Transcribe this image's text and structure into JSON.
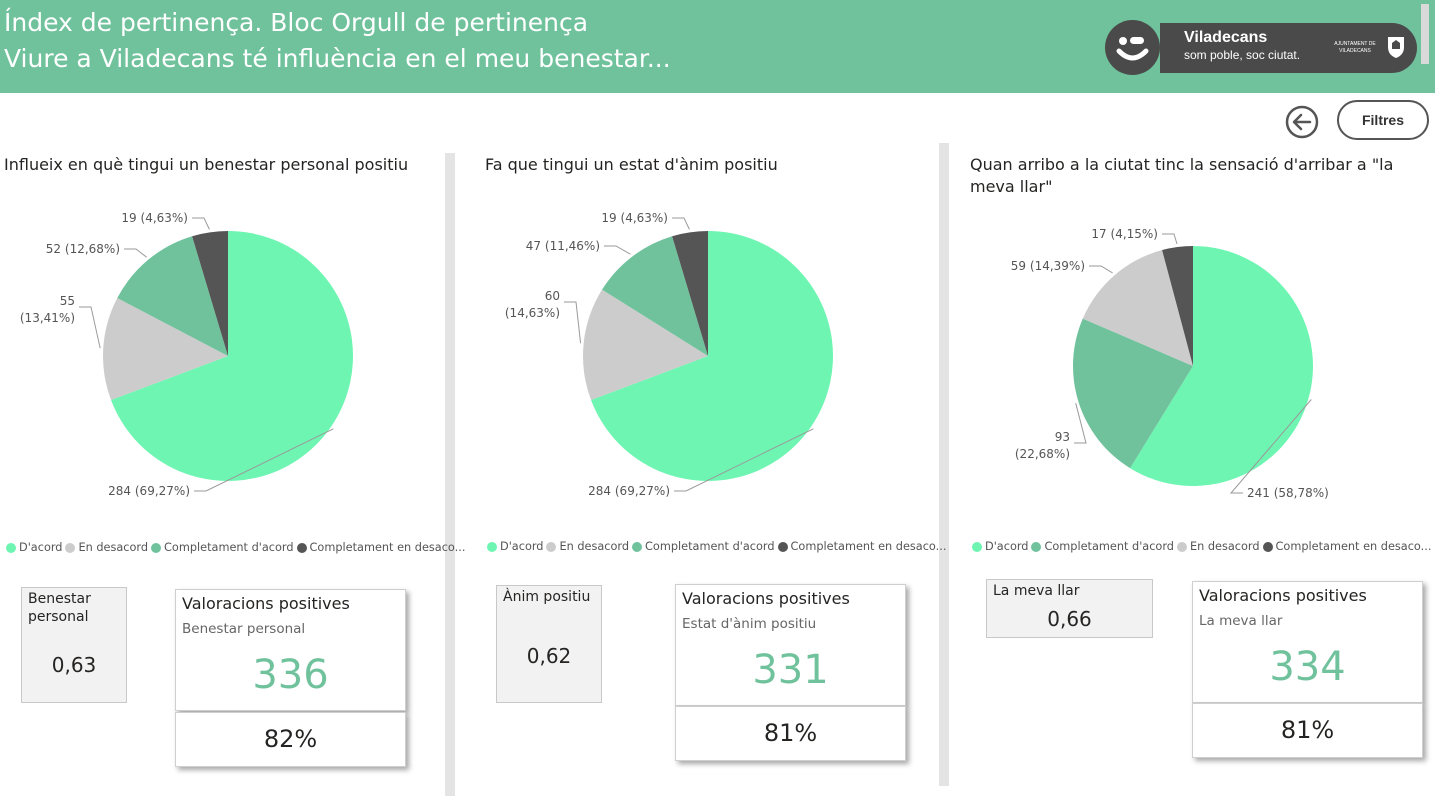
{
  "header": {
    "title_line1": "Índex de pertinença. Bloc Orgull de pertinença",
    "title_line2": "Viure a Viladecans té influència en el meu benestar...",
    "logo_name": "Viladecans",
    "logo_tagline": "som poble, soc ciutat.",
    "logo_ajuntament": "AJUNTAMENT DE VILADECANS"
  },
  "toolbar": {
    "filters_label": "Filtres",
    "back_icon": "back-arrow-icon"
  },
  "colors": {
    "header_bg": "#70c29c",
    "d_acord": "#6ef5b2",
    "completament_d_acord": "#70c29c",
    "en_desacord": "#cccccc",
    "completament_en_desacord": "#555555",
    "kpi_number": "#70c29c"
  },
  "panels": [
    {
      "title": "Influeix en què tingui un benestar personal positiu",
      "legend": [
        {
          "label": "D'acord",
          "color": "#6ef5b2"
        },
        {
          "label": "En desacord",
          "color": "#cccccc"
        },
        {
          "label": "Completament d'acord",
          "color": "#70c29c"
        },
        {
          "label": "Completament en desaco...",
          "color": "#555555"
        }
      ],
      "index_label": "Benestar personal",
      "index_value": "0,63",
      "valoracions_title": "Valoracions positives",
      "valoracions_sub": "Benestar personal",
      "valoracions_num": "336",
      "valoracions_pct": "82%"
    },
    {
      "title": "Fa que tingui un estat d'ànim positiu",
      "legend": [
        {
          "label": "D'acord",
          "color": "#6ef5b2"
        },
        {
          "label": "En desacord",
          "color": "#cccccc"
        },
        {
          "label": "Completament d'acord",
          "color": "#70c29c"
        },
        {
          "label": "Completament en desaco...",
          "color": "#555555"
        }
      ],
      "index_label": "Ànim positiu",
      "index_value": "0,62",
      "valoracions_title": "Valoracions positives",
      "valoracions_sub": "Estat d'ànim positiu",
      "valoracions_num": "331",
      "valoracions_pct": "81%"
    },
    {
      "title": "Quan arribo a la ciutat tinc la sensació d'arribar a \"la meva llar\"",
      "legend": [
        {
          "label": "D'acord",
          "color": "#6ef5b2"
        },
        {
          "label": "Completament d'acord",
          "color": "#70c29c"
        },
        {
          "label": "En desacord",
          "color": "#cccccc"
        },
        {
          "label": "Completament en desaco...",
          "color": "#555555"
        }
      ],
      "index_label": "La meva llar",
      "index_value": "0,66",
      "valoracions_title": "Valoracions positives",
      "valoracions_sub": "La meva llar",
      "valoracions_num": "334",
      "valoracions_pct": "81%"
    }
  ],
  "chart_data": [
    {
      "type": "pie",
      "title": "Influeix en què tingui un benestar personal positiu",
      "slices": [
        {
          "name": "D'acord",
          "value": 284,
          "label": "284 (69,27%)",
          "color": "#6ef5b2"
        },
        {
          "name": "En desacord",
          "value": 55,
          "label": "55 (13,41%)",
          "color": "#cccccc"
        },
        {
          "name": "Completament d'acord",
          "value": 52,
          "label": "52 (12,68%)",
          "color": "#70c29c"
        },
        {
          "name": "Completament en desacord",
          "value": 19,
          "label": "19 (4,63%)",
          "color": "#555555"
        }
      ],
      "legend_position": "bottom-left"
    },
    {
      "type": "pie",
      "title": "Fa que tingui un estat d'ànim positiu",
      "slices": [
        {
          "name": "D'acord",
          "value": 284,
          "label": "284 (69,27%)",
          "color": "#6ef5b2"
        },
        {
          "name": "En desacord",
          "value": 60,
          "label": "60 (14,63%)",
          "color": "#cccccc"
        },
        {
          "name": "Completament d'acord",
          "value": 47,
          "label": "47 (11,46%)",
          "color": "#70c29c"
        },
        {
          "name": "Completament en desacord",
          "value": 19,
          "label": "19 (4,63%)",
          "color": "#555555"
        }
      ],
      "legend_position": "bottom-left"
    },
    {
      "type": "pie",
      "title": "Quan arribo a la ciutat tinc la sensació d'arribar a \"la meva llar\"",
      "slices": [
        {
          "name": "D'acord",
          "value": 241,
          "label": "241 (58,78%)",
          "color": "#6ef5b2"
        },
        {
          "name": "Completament d'acord",
          "value": 93,
          "label": "93 (22,68%)",
          "color": "#70c29c"
        },
        {
          "name": "En desacord",
          "value": 59,
          "label": "59 (14,39%)",
          "color": "#cccccc"
        },
        {
          "name": "Completament en desacord",
          "value": 17,
          "label": "17 (4,15%)",
          "color": "#555555"
        }
      ],
      "legend_position": "bottom-left"
    }
  ]
}
